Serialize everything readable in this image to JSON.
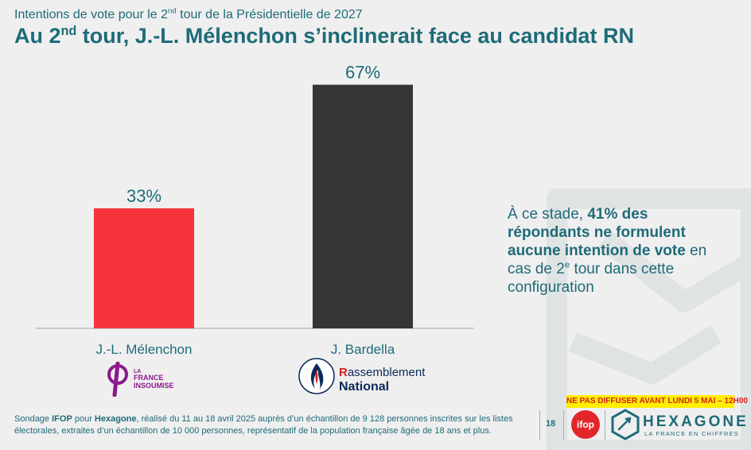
{
  "header": {
    "subtitle_pre": "Intentions de vote pour le 2",
    "subtitle_sup": "nd",
    "subtitle_post": " tour de la Présidentielle de 2027",
    "title_pre": "Au 2",
    "title_sup": "nd",
    "title_post": " tour, J.-L. Mélenchon s’inclinerait face au candidat RN"
  },
  "chart_data": {
    "type": "bar",
    "categories": [
      "J.-L. Mélenchon",
      "J. Bardella"
    ],
    "values": [
      33,
      67
    ],
    "data_labels": [
      "33%",
      "67%"
    ],
    "colors": [
      "#f4333a",
      "#353535"
    ],
    "ylim": [
      0,
      75
    ],
    "grid": false,
    "legend": "none"
  },
  "logos": {
    "lfi_line1": "LA",
    "lfi_line2": "FRANCE",
    "lfi_line3": "INSOUMISE",
    "rn_line1_initial": "R",
    "rn_line1_rest": "assemblement",
    "rn_line2": "National"
  },
  "callout": {
    "part1": "À ce stade, ",
    "bold": "41% des répondants ne formulent aucune intention de vote",
    "part2": " en cas de 2",
    "sup": "e",
    "part3": " tour dans cette configuration"
  },
  "footer": {
    "note_pre": "Sondage ",
    "note_ifop": "IFOP",
    "note_mid": " pour ",
    "note_hex": "Hexagone",
    "note_post": ", réalisé du 11 au 18 avril 2025 auprès d’un échantillon de 9 128 personnes inscrites sur les listes électorales, extraites d’un échantillon de 10 000 personnes, représentatif de la population française âgée de 18 ans et plus.",
    "page_number": "18",
    "embargo": "NE PAS DIFFUSER AVANT LUNDI 5 MAI – 12H00",
    "ifop_logo_text": "ifop",
    "brand_name": "HEXAGONE",
    "brand_tagline": "LA FRANCE EN CHIFFRES"
  },
  "colors": {
    "text": "#1e6b79",
    "background": "#efefef",
    "embargo_bg": "#ffee00",
    "embargo_text": "#d52020"
  }
}
